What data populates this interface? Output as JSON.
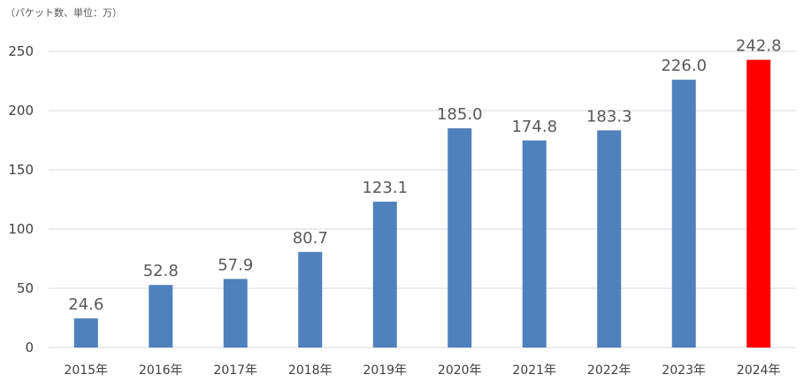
{
  "chart_data": {
    "type": "bar",
    "unit_note": "（パケット数、単位：万）",
    "categories": [
      "2015年",
      "2016年",
      "2017年",
      "2018年",
      "2019年",
      "2020年",
      "2021年",
      "2022年",
      "2023年",
      "2024年"
    ],
    "values": [
      24.6,
      52.8,
      57.9,
      80.7,
      123.1,
      185.0,
      174.8,
      183.3,
      226.0,
      242.8
    ],
    "value_labels": [
      "24.6",
      "52.8",
      "57.9",
      "80.7",
      "123.1",
      "185.0",
      "174.8",
      "183.3",
      "226.0",
      "242.8"
    ],
    "yticks": [
      "0",
      "50",
      "100",
      "150",
      "200",
      "250"
    ],
    "ylim": [
      0,
      250
    ],
    "grid": true,
    "legend": "none",
    "colors": {
      "bar": "#4f81bd",
      "highlight": "#ff0000",
      "highlight_index": 9
    }
  }
}
